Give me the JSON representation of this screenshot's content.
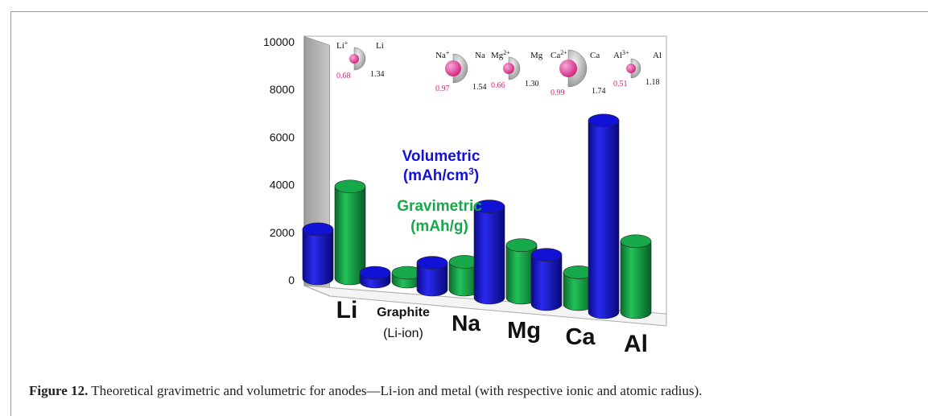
{
  "figure": {
    "label": "Figure 12.",
    "text": " Theoretical gravimetric and volumetric for anodes—Li-ion and metal (with respective ionic and atomic radius)."
  },
  "chart_data": {
    "type": "bar",
    "categories": [
      "Li",
      "Graphite",
      "Na",
      "Mg",
      "Ca",
      "Al"
    ],
    "category_sublabels": [
      "",
      "(Li-ion)",
      "",
      "",
      "",
      ""
    ],
    "series": [
      {
        "name": "Volumetric (mAh/cm3)",
        "color": "#1212d6",
        "values": [
          2062,
          372,
          1128,
          3833,
          2073,
          8046
        ]
      },
      {
        "name": "Gravimetric (mAh/g)",
        "color": "#17a84a",
        "values": [
          3860,
          372,
          1166,
          2205,
          1337,
          2980
        ]
      }
    ],
    "ylim": [
      0,
      10000
    ],
    "yticks": [
      0,
      2000,
      4000,
      6000,
      8000,
      10000
    ],
    "grid": false,
    "legend": [
      {
        "lines": [
          "Volumetric",
          "(mAh/cm",
          "3",
          ")"
        ],
        "color": "#1212d6"
      },
      {
        "lines": [
          "Gravimetric",
          "(mAh/g)"
        ],
        "color": "#17a84a"
      }
    ],
    "radii": [
      {
        "ion": "Li",
        "ion_sup": "+",
        "atom": "Li",
        "ionic": "0.68",
        "atomic": "1.34"
      },
      {
        "ion": "Na",
        "ion_sup": "+",
        "atom": "Na",
        "ionic": "0.97",
        "atomic": "1.54"
      },
      {
        "ion": "Mg",
        "ion_sup": "2+",
        "atom": "Mg",
        "ionic": "0.66",
        "atomic": "1.30"
      },
      {
        "ion": "Ca",
        "ion_sup": "2+",
        "atom": "Ca",
        "ionic": "0.99",
        "atomic": "1.74"
      },
      {
        "ion": "Al",
        "ion_sup": "3+",
        "atom": "Al",
        "ionic": "0.51",
        "atomic": "1.18"
      }
    ]
  }
}
